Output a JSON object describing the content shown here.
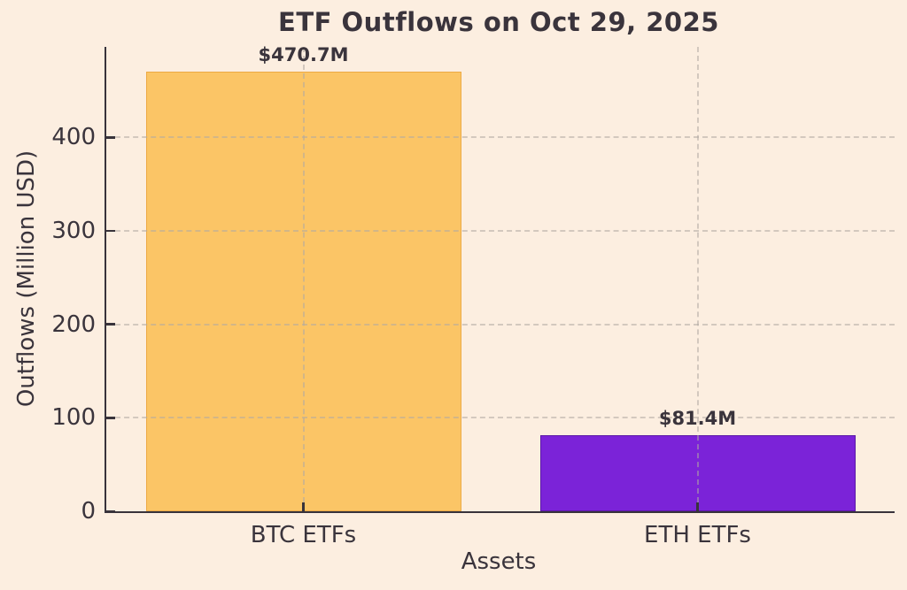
{
  "chart_data": {
    "type": "bar",
    "title": "ETF Outflows on Oct 29, 2025",
    "xlabel": "Assets",
    "ylabel": "Outflows (Million USD)",
    "categories": [
      "BTC ETFs",
      "ETH ETFs"
    ],
    "values": [
      470.7,
      81.4
    ],
    "value_labels": [
      "$470.7M",
      "$81.4M"
    ],
    "bar_colors": [
      "#fbc566",
      "#7b23d8"
    ],
    "bar_edge_colors": [
      "#edaa45",
      "#5b18a6"
    ],
    "ylim": [
      0,
      497
    ],
    "yticks": [
      0,
      100,
      200,
      300,
      400
    ],
    "grid": "dashed gridlines on both axes, drawn over bars",
    "legend": "none",
    "colors": {
      "background": "#fceee0",
      "text": "#3a343c",
      "spine": "#38333b",
      "gridline": "#b0a9a2"
    }
  }
}
